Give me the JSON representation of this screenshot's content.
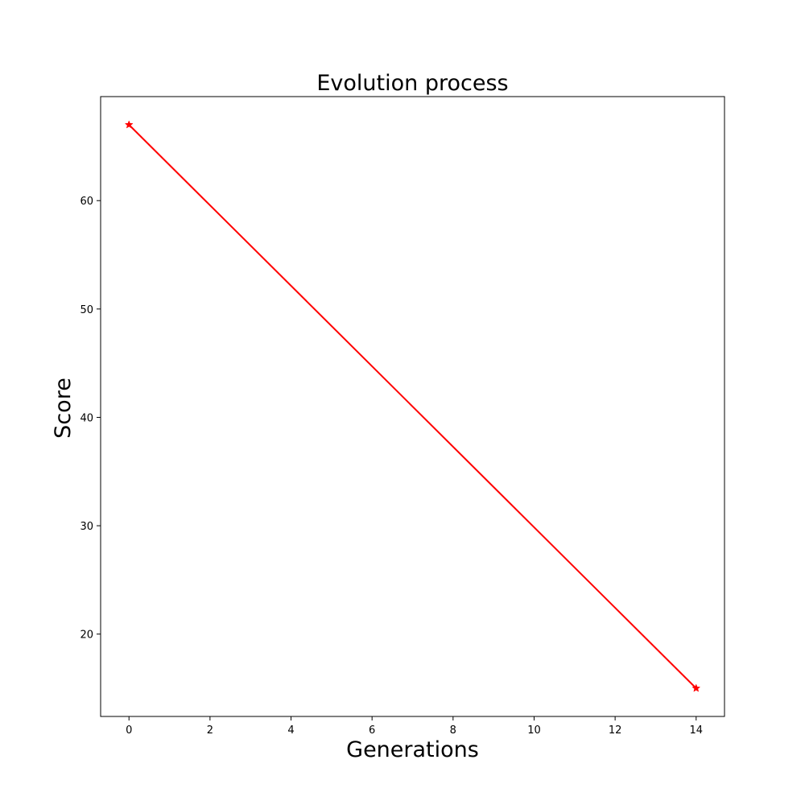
{
  "chart_data": {
    "type": "line",
    "title": "Evolution process",
    "xlabel": "Generations",
    "ylabel": "Score",
    "xlim": [
      -0.7,
      14.7
    ],
    "ylim": [
      12.4,
      69.6
    ],
    "xticks": [
      0,
      2,
      4,
      6,
      8,
      10,
      12,
      14
    ],
    "yticks": [
      20,
      30,
      40,
      50,
      60
    ],
    "grid": false,
    "series": [
      {
        "color": "#ff0000",
        "marker": "star",
        "x": [
          0,
          14
        ],
        "y": [
          67,
          15
        ]
      }
    ]
  }
}
